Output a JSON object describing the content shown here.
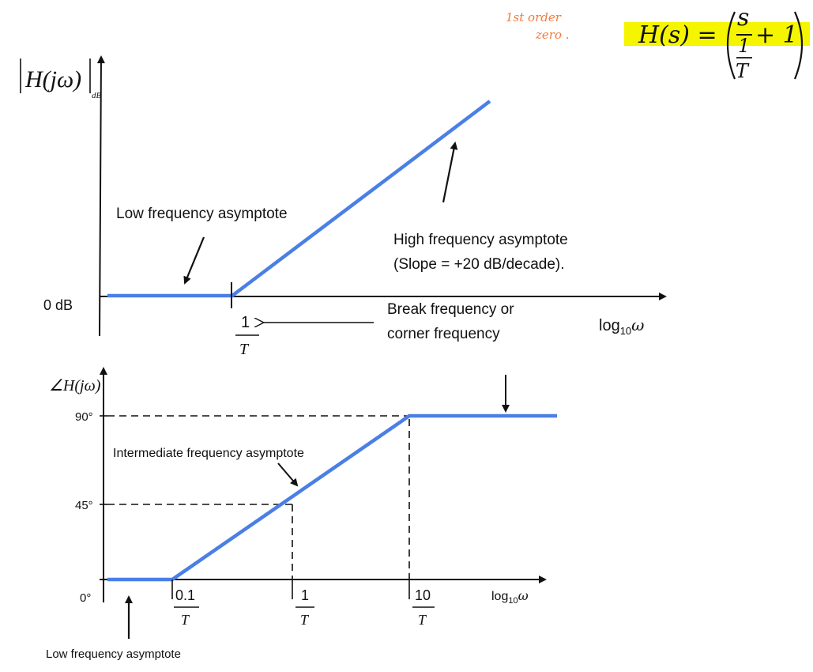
{
  "magnitude_plot": {
    "y_axis_label_main": "H(jω)",
    "y_axis_label_sub": "dB",
    "zero_db_tick": "0 dB",
    "x_axis_label_log": "log",
    "x_axis_label_sub": "10",
    "x_axis_label_var": "ω",
    "break_tick_numerator": "1",
    "break_tick_denominator": "T",
    "low_freq_annotation": "Low frequency asymptote",
    "high_freq_annotation_line1": "High frequency asymptote",
    "high_freq_annotation_line2": "(Slope = +20 dB/decade).",
    "break_freq_annotation_line1": "Break frequency or",
    "break_freq_annotation_line2": "corner frequency"
  },
  "phase_plot": {
    "y_axis_label": "∠H(jω)",
    "tick_90": "90°",
    "tick_45": "45°",
    "tick_0": "0°",
    "x_tick_1_num": "0.1",
    "x_tick_1_den": "T",
    "x_tick_2_num": "1",
    "x_tick_2_den": "T",
    "x_tick_3_num": "10",
    "x_tick_3_den": "T",
    "x_axis_label_log": "log",
    "x_axis_label_sub": "10",
    "x_axis_label_var": "ω",
    "intermediate_annotation": "Intermediate frequency asymptote",
    "low_freq_annotation": "Low frequency asymptote"
  },
  "handwritten_note": {
    "line1": "1st order",
    "line2": "zero ."
  },
  "formula": {
    "lhs": "H(s) =",
    "numerator_s": "s",
    "den_num": "1",
    "den_den": "T",
    "plus_one": "+ 1"
  },
  "colors": {
    "asymptote_line": "#4a7fe5",
    "highlight": "#f5f500",
    "handwriting": "#f07a3c",
    "axis": "#111111"
  }
}
